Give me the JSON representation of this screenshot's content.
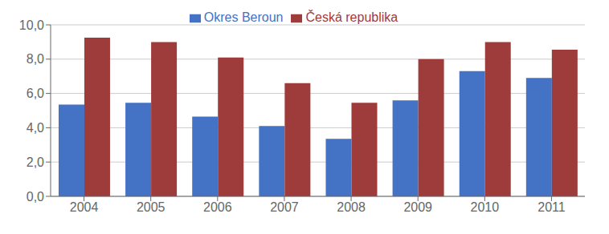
{
  "chart_data": {
    "type": "bar",
    "categories": [
      "2004",
      "2005",
      "2006",
      "2007",
      "2008",
      "2009",
      "2010",
      "2011"
    ],
    "series": [
      {
        "name": "Okres Beroun",
        "color": "#4472C4",
        "values": [
          5.35,
          5.45,
          4.65,
          4.1,
          3.35,
          5.6,
          7.3,
          6.9
        ]
      },
      {
        "name": "Česká republika",
        "color": "#9E3B3B",
        "values": [
          9.25,
          9.0,
          8.1,
          6.6,
          5.45,
          8.0,
          9.0,
          8.55
        ]
      }
    ],
    "ylim": [
      0,
      10.0
    ],
    "yticks": [
      {
        "value": 0.0,
        "label": "0,0"
      },
      {
        "value": 2.0,
        "label": "2,0"
      },
      {
        "value": 4.0,
        "label": "4,0"
      },
      {
        "value": 6.0,
        "label": "6,0"
      },
      {
        "value": 8.0,
        "label": "8,0"
      },
      {
        "value": 10.0,
        "label": "10,0"
      }
    ],
    "grid": true,
    "legend": "top"
  }
}
